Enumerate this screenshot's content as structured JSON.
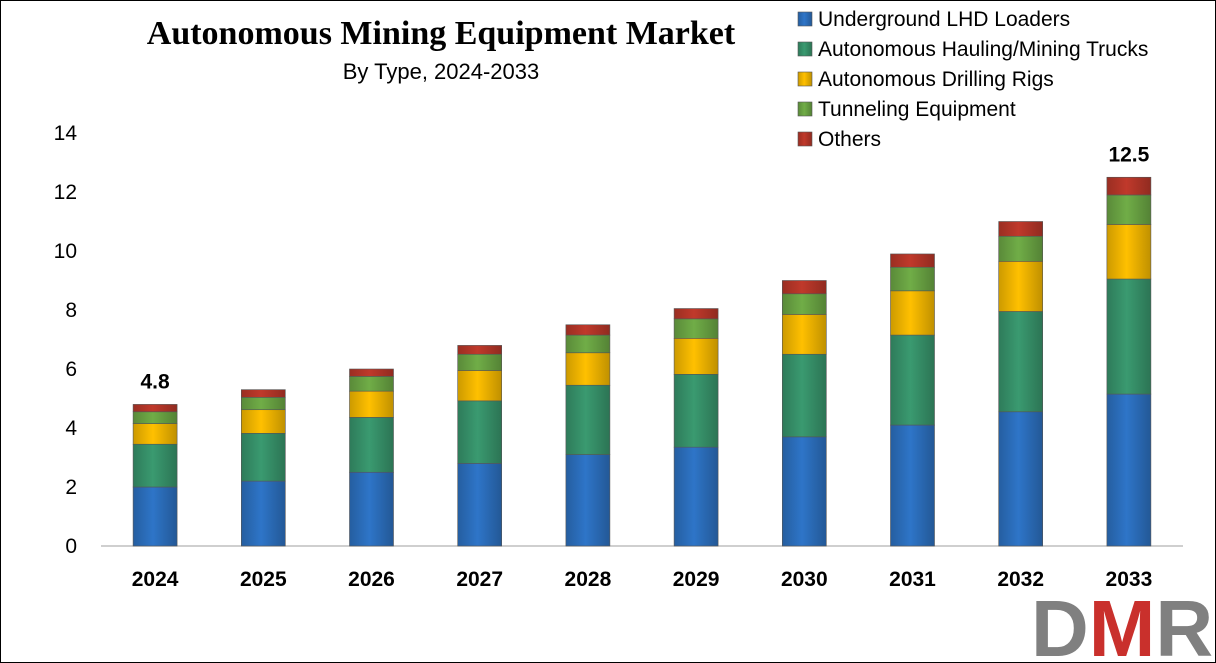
{
  "chart_data": {
    "type": "bar",
    "stacked": true,
    "title": "Autonomous Mining Equipment Market",
    "subtitle": "By Type, 2024-2033",
    "xlabel": "",
    "ylabel": "",
    "ylim": [
      0,
      14
    ],
    "yticks": [
      0,
      2,
      4,
      6,
      8,
      10,
      12,
      14
    ],
    "grid": false,
    "legend_position": "top-right",
    "categories": [
      "2024",
      "2025",
      "2026",
      "2027",
      "2028",
      "2029",
      "2030",
      "2031",
      "2032",
      "2033"
    ],
    "series": [
      {
        "name": "Underground LHD Loaders",
        "color": "#2E75C8",
        "values": [
          2.0,
          2.2,
          2.5,
          2.8,
          3.1,
          3.35,
          3.7,
          4.1,
          4.55,
          5.15
        ]
      },
      {
        "name": "Autonomous Hauling/Mining Trucks",
        "color": "#3A9A70",
        "values": [
          1.45,
          1.62,
          1.86,
          2.12,
          2.35,
          2.47,
          2.8,
          3.05,
          3.4,
          3.9
        ]
      },
      {
        "name": "Autonomous Drilling Rigs",
        "color": "#FFC000",
        "values": [
          0.7,
          0.8,
          0.89,
          1.03,
          1.1,
          1.22,
          1.35,
          1.5,
          1.7,
          1.85
        ]
      },
      {
        "name": "Tunneling Equipment",
        "color": "#70AD47",
        "values": [
          0.4,
          0.42,
          0.5,
          0.55,
          0.6,
          0.66,
          0.7,
          0.8,
          0.85,
          1.0
        ]
      },
      {
        "name": "Others",
        "color": "#C0392B",
        "values": [
          0.25,
          0.26,
          0.25,
          0.3,
          0.35,
          0.35,
          0.45,
          0.45,
          0.5,
          0.6
        ]
      }
    ],
    "data_labels": [
      {
        "category": "2024",
        "text": "4.8"
      },
      {
        "category": "2033",
        "text": "12.5"
      }
    ]
  },
  "logo": {
    "text": "DMR",
    "colors": {
      "D": "#808080",
      "M": "#C9302C",
      "R": "#808080"
    }
  }
}
